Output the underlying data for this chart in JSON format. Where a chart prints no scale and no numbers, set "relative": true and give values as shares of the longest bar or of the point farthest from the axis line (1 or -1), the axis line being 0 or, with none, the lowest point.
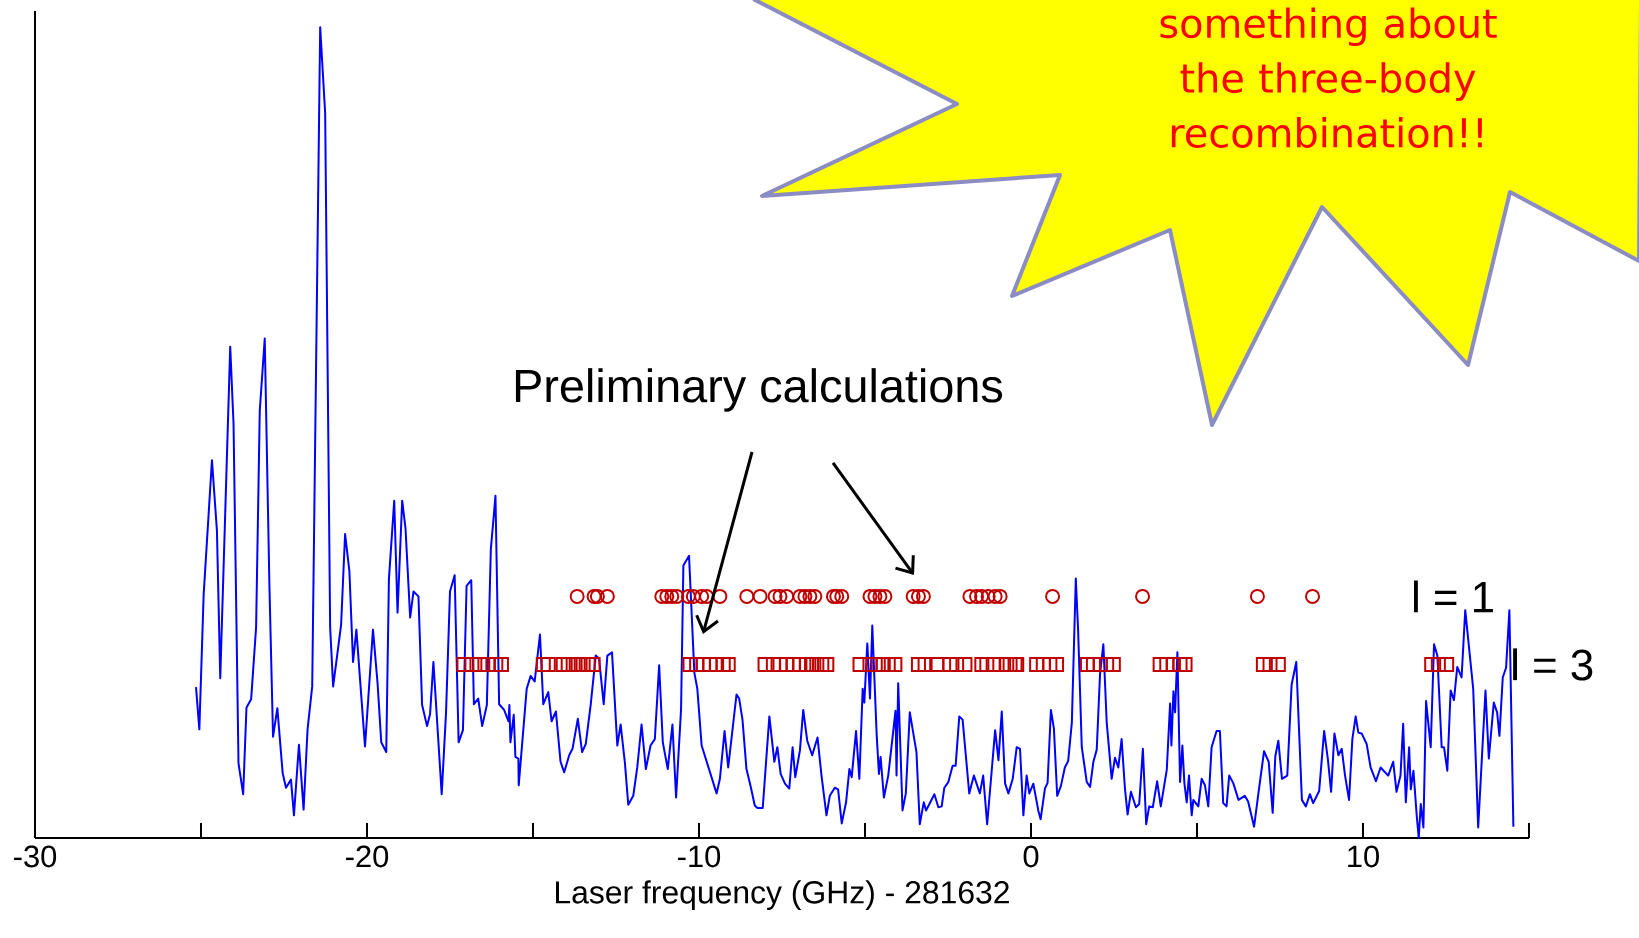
{
  "chart_data": {
    "type": "line",
    "xlabel": "Laser frequency (GHz) - 281632",
    "relative": true,
    "tick_labels": "x",
    "xlim": [
      -30,
      15
    ],
    "xticks": [
      -30,
      {
        "value": -25,
        "label": null
      },
      -20,
      {
        "value": -15,
        "label": null
      },
      -10,
      {
        "value": -5,
        "label": null
      },
      0,
      {
        "value": 5,
        "label": null
      },
      10,
      {
        "value": 15,
        "label": null
      }
    ],
    "annotations": [
      "Preliminary calculations",
      "something about the three-body recombination!!"
    ],
    "series": [
      {
        "color": "#0000ff",
        "x": [
          -25.15,
          -25.05,
          -24.92,
          -24.67,
          -24.52,
          -24.42,
          -24.12,
          -24.02,
          -23.87,
          -23.73,
          -23.63,
          -23.49,
          -23.34,
          -23.23,
          -23.08,
          -22.94,
          -22.83,
          -22.7,
          -22.54,
          -22.44,
          -22.29,
          -22.2,
          -22.05,
          -21.91,
          -21.79,
          -21.65,
          -21.41,
          -21.26,
          -21.11,
          -21.02,
          -20.78,
          -20.66,
          -20.53,
          -20.42,
          -20.32,
          -20.06,
          -19.82,
          -19.68,
          -19.57,
          -19.42,
          -19.34,
          -19.18,
          -19.08,
          -18.94,
          -18.84,
          -18.7,
          -18.6,
          -18.45,
          -18.34,
          -18.19,
          -18.1,
          -18.0,
          -17.75,
          -17.62,
          -17.5,
          -17.36,
          -17.24,
          -17.11,
          -17.0,
          -16.86,
          -16.78,
          -16.65,
          -16.53,
          -16.39,
          -16.27,
          -16.13,
          -16.02,
          -15.87,
          -15.74,
          -15.71,
          -15.68,
          -15.58,
          -15.53,
          -15.44,
          -15.43,
          -15.19,
          -15.07,
          -14.95,
          -14.79,
          -14.69,
          -14.54,
          -14.44,
          -14.31,
          -14.17,
          -14.06,
          -13.91,
          -13.81,
          -13.65,
          -13.52,
          -13.41,
          -13.26,
          -13.11,
          -13.01,
          -12.87,
          -12.76,
          -12.62,
          -12.46,
          -12.36,
          -12.23,
          -12.13,
          -11.98,
          -11.86,
          -11.73,
          -11.6,
          -11.46,
          -11.33,
          -11.2,
          -11.09,
          -10.94,
          -10.8,
          -10.69,
          -10.54,
          -10.47,
          -10.3,
          -10.14,
          -10.05,
          -9.92,
          -9.47,
          -9.37,
          -9.23,
          -9.12,
          -8.87,
          -8.79,
          -8.69,
          -8.57,
          -8.44,
          -8.32,
          -8.24,
          -8.08,
          -7.88,
          -7.73,
          -7.64,
          -7.54,
          -7.41,
          -7.28,
          -7.18,
          -7.1,
          -6.96,
          -6.86,
          -6.74,
          -6.59,
          -6.43,
          -6.31,
          -6.16,
          -6.06,
          -5.91,
          -5.81,
          -5.7,
          -5.57,
          -5.47,
          -5.4,
          -5.27,
          -5.17,
          -5.07,
          -5.02,
          -4.93,
          -4.85,
          -4.78,
          -4.65,
          -4.58,
          -4.53,
          -4.43,
          -4.3,
          -4.17,
          -4.08,
          -4.05,
          -4.0,
          -3.87,
          -3.77,
          -3.65,
          -3.45,
          -3.35,
          -3.23,
          -3.16,
          -2.91,
          -2.79,
          -2.69,
          -2.61,
          -2.49,
          -2.36,
          -2.27,
          -2.16,
          -2.06,
          -1.86,
          -1.72,
          -1.54,
          -1.44,
          -1.32,
          -1.08,
          -0.98,
          -0.88,
          -0.78,
          -0.68,
          -0.55,
          -0.43,
          -0.33,
          -0.23,
          -0.13,
          -0.05,
          0.07,
          0.22,
          0.29,
          0.42,
          0.5,
          0.6,
          0.69,
          0.79,
          0.9,
          1.02,
          1.12,
          1.23,
          1.35,
          1.42,
          1.53,
          1.68,
          1.78,
          1.88,
          1.98,
          2.08,
          2.18,
          2.28,
          2.43,
          2.53,
          2.63,
          2.73,
          2.83,
          2.91,
          3.01,
          3.16,
          3.26,
          3.37,
          3.47,
          3.56,
          3.67,
          3.8,
          3.91,
          4.09,
          4.19,
          4.23,
          4.29,
          4.34,
          4.41,
          4.49,
          4.56,
          4.62,
          4.69,
          4.76,
          4.84,
          4.89,
          5.04,
          5.14,
          5.24,
          5.34,
          5.44,
          5.59,
          5.69,
          5.79,
          5.89,
          5.97,
          6.09,
          6.25,
          6.44,
          6.54,
          6.72,
          6.84,
          7.02,
          7.16,
          7.28,
          7.36,
          7.45,
          7.56,
          7.72,
          7.85,
          7.99,
          8.16,
          8.28,
          8.4,
          8.5,
          8.68,
          8.83,
          8.94,
          9.04,
          9.14,
          9.26,
          9.36,
          9.46,
          9.58,
          9.68,
          9.78,
          9.86,
          9.96,
          10.11,
          10.23,
          10.39,
          10.53,
          10.76,
          10.91,
          11.01,
          11.13,
          11.21,
          11.29,
          11.39,
          11.44,
          11.52,
          11.62,
          11.68,
          11.74,
          11.82,
          11.9,
          12.04,
          12.14,
          12.24,
          12.37,
          12.44,
          12.54,
          12.64,
          12.74,
          12.84,
          12.97,
          13.08,
          13.32,
          13.47,
          13.69,
          13.79,
          13.94,
          14.04,
          14.11,
          14.21,
          14.31,
          14.41,
          14.53
        ],
        "values": [
          0.186,
          0.134,
          0.3,
          0.466,
          0.379,
          0.197,
          0.606,
          0.511,
          0.092,
          0.054,
          0.161,
          0.171,
          0.26,
          0.527,
          0.616,
          0.313,
          0.125,
          0.16,
          0.08,
          0.062,
          0.072,
          0.028,
          0.115,
          0.035,
          0.134,
          0.187,
          1.0,
          0.894,
          0.26,
          0.187,
          0.263,
          0.375,
          0.329,
          0.217,
          0.257,
          0.113,
          0.257,
          0.19,
          0.118,
          0.106,
          0.319,
          0.416,
          0.278,
          0.416,
          0.382,
          0.272,
          0.304,
          0.298,
          0.164,
          0.138,
          0.153,
          0.217,
          0.054,
          0.154,
          0.304,
          0.324,
          0.118,
          0.133,
          0.311,
          0.318,
          0.165,
          0.172,
          0.138,
          0.164,
          0.356,
          0.422,
          0.165,
          0.158,
          0.144,
          0.164,
          0.118,
          0.152,
          0.1,
          0.098,
          0.065,
          0.184,
          0.2,
          0.193,
          0.251,
          0.165,
          0.18,
          0.144,
          0.156,
          0.094,
          0.081,
          0.102,
          0.11,
          0.147,
          0.106,
          0.116,
          0.165,
          0.225,
          0.221,
          0.165,
          0.225,
          0.229,
          0.114,
          0.14,
          0.092,
          0.041,
          0.052,
          0.087,
          0.14,
          0.085,
          0.114,
          0.122,
          0.213,
          0.118,
          0.085,
          0.14,
          0.05,
          0.159,
          0.336,
          0.348,
          0.204,
          0.184,
          0.114,
          0.055,
          0.073,
          0.132,
          0.087,
          0.177,
          0.172,
          0.146,
          0.085,
          0.063,
          0.04,
          0.037,
          0.037,
          0.15,
          0.094,
          0.112,
          0.079,
          0.067,
          0.061,
          0.112,
          0.075,
          0.108,
          0.158,
          0.12,
          0.102,
          0.124,
          0.077,
          0.028,
          0.052,
          0.062,
          0.06,
          0.018,
          0.044,
          0.085,
          0.075,
          0.132,
          0.073,
          0.184,
          0.167,
          0.24,
          0.172,
          0.262,
          0.129,
          0.079,
          0.1,
          0.05,
          0.077,
          0.124,
          0.157,
          0.077,
          0.191,
          0.034,
          0.055,
          0.155,
          0.106,
          0.017,
          0.044,
          0.034,
          0.054,
          0.038,
          0.039,
          0.062,
          0.069,
          0.089,
          0.089,
          0.15,
          0.146,
          0.055,
          0.077,
          0.055,
          0.077,
          0.017,
          0.133,
          0.096,
          0.156,
          0.067,
          0.055,
          0.073,
          0.112,
          0.11,
          0.028,
          0.077,
          0.055,
          0.067,
          0.034,
          0.023,
          0.061,
          0.068,
          0.158,
          0.135,
          0.052,
          0.064,
          0.087,
          0.095,
          0.142,
          0.32,
          0.256,
          0.112,
          0.069,
          0.063,
          0.094,
          0.109,
          0.202,
          0.239,
          0.143,
          0.073,
          0.099,
          0.087,
          0.122,
          0.061,
          0.029,
          0.057,
          0.038,
          0.042,
          0.11,
          0.017,
          0.039,
          0.038,
          0.07,
          0.039,
          0.084,
          0.166,
          0.114,
          0.181,
          0.155,
          0.229,
          0.069,
          0.114,
          0.068,
          0.044,
          0.077,
          0.028,
          0.047,
          0.039,
          0.073,
          0.065,
          0.039,
          0.112,
          0.132,
          0.132,
          0.043,
          0.039,
          0.077,
          0.068,
          0.047,
          0.052,
          0.045,
          0.014,
          0.052,
          0.107,
          0.094,
          0.031,
          0.101,
          0.12,
          0.073,
          0.077,
          0.189,
          0.217,
          0.047,
          0.039,
          0.054,
          0.043,
          0.058,
          0.132,
          0.098,
          0.057,
          0.129,
          0.102,
          0.11,
          0.077,
          0.047,
          0.122,
          0.15,
          0.13,
          0.129,
          0.116,
          0.087,
          0.07,
          0.087,
          0.077,
          0.094,
          0.057,
          0.077,
          0.141,
          0.044,
          0.112,
          0.06,
          0.083,
          0.027,
          0.0,
          0.042,
          0.013,
          0.169,
          0.112,
          0.239,
          0.225,
          0.112,
          0.112,
          0.083,
          0.182,
          0.17,
          0.211,
          0.198,
          0.281,
          0.184,
          0.013,
          0.182,
          0.098,
          0.167,
          0.155,
          0.126,
          0.198,
          0.21,
          0.281,
          0.014
        ]
      },
      {
        "type": "scatter",
        "name": "l = 1",
        "color": "#c00000",
        "marker": "circle",
        "x": [
          -13.67,
          -13.16,
          -13.06,
          -12.76,
          -11.12,
          -10.97,
          -10.82,
          -10.67,
          -10.32,
          -10.17,
          -9.92,
          -9.77,
          -9.37,
          -8.56,
          -8.16,
          -7.71,
          -7.56,
          -7.36,
          -6.96,
          -6.81,
          -6.66,
          -6.51,
          -5.95,
          -5.85,
          -5.7,
          -4.85,
          -4.7,
          -4.55,
          -4.4,
          -3.55,
          -3.39,
          -3.24,
          -1.84,
          -1.64,
          -1.49,
          -1.29,
          -1.08,
          -0.93,
          0.65,
          3.36,
          6.82,
          8.48
        ],
        "values": [
          0.298,
          0.298,
          0.298,
          0.298,
          0.298,
          0.298,
          0.298,
          0.298,
          0.298,
          0.298,
          0.298,
          0.298,
          0.298,
          0.298,
          0.298,
          0.298,
          0.298,
          0.298,
          0.298,
          0.298,
          0.298,
          0.298,
          0.298,
          0.298,
          0.298,
          0.298,
          0.298,
          0.298,
          0.298,
          0.298,
          0.298,
          0.298,
          0.298,
          0.298,
          0.298,
          0.298,
          0.298,
          0.298,
          0.298,
          0.298,
          0.298,
          0.298
        ]
      },
      {
        "type": "scatter",
        "name": "l = 3",
        "color": "#c00000",
        "marker": "square",
        "x": [
          -17.08,
          -16.84,
          -16.6,
          -16.36,
          -16.12,
          -15.95,
          -14.69,
          -14.54,
          -14.09,
          -13.94,
          -13.79,
          -13.64,
          -13.49,
          -13.34,
          -13.19,
          -10.27,
          -10.07,
          -9.87,
          -9.67,
          -9.47,
          -9.27,
          -9.12,
          -8.01,
          -7.76,
          -7.56,
          -7.36,
          -7.16,
          -6.96,
          -6.76,
          -6.61,
          -6.45,
          -6.3,
          -6.15,
          -5.15,
          -4.85,
          -4.6,
          -4.45,
          -4.3,
          -4.1,
          -3.39,
          -3.19,
          -2.84,
          -2.44,
          -2.24,
          -1.99,
          -1.48,
          -1.33,
          -1.14,
          -0.73,
          -0.63,
          -0.48,
          -0.43,
          0.17,
          0.37,
          0.57,
          0.77,
          1.7,
          1.88,
          2.08,
          2.28,
          2.48,
          3.89,
          4.09,
          4.29,
          4.49,
          4.64,
          7.0,
          7.2,
          7.45,
          12.07,
          12.27,
          12.52
        ],
        "values": [
          0.214,
          0.214,
          0.214,
          0.214,
          0.214,
          0.214,
          0.214,
          0.214,
          0.214,
          0.214,
          0.214,
          0.214,
          0.214,
          0.214,
          0.214,
          0.214,
          0.214,
          0.214,
          0.214,
          0.214,
          0.214,
          0.214,
          0.214,
          0.214,
          0.214,
          0.214,
          0.214,
          0.214,
          0.214,
          0.214,
          0.214,
          0.214,
          0.214,
          0.214,
          0.214,
          0.214,
          0.214,
          0.214,
          0.214,
          0.214,
          0.214,
          0.214,
          0.214,
          0.214,
          0.214,
          0.214,
          0.214,
          0.214,
          0.214,
          0.214,
          0.214,
          0.214,
          0.214,
          0.214,
          0.214,
          0.214,
          0.214,
          0.214,
          0.214,
          0.214,
          0.214,
          0.214,
          0.214,
          0.214,
          0.214,
          0.214,
          0.214,
          0.214,
          0.214,
          0.214,
          0.214,
          0.214
        ]
      }
    ]
  }
}
